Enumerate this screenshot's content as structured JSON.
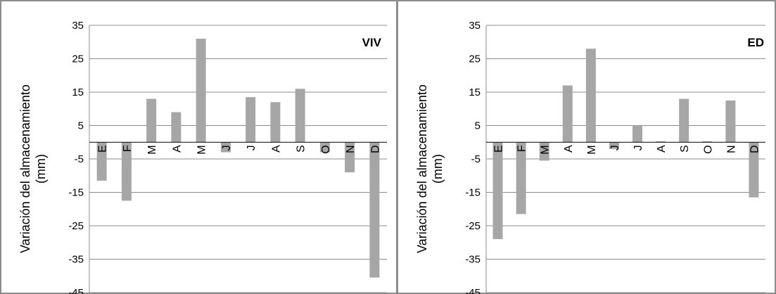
{
  "chart_data": [
    {
      "type": "bar",
      "title": "VIV",
      "ylabel": "Variación del almacenamiento (mm)",
      "ylabel_lines": [
        "Variación del almacenamiento",
        "(mm)"
      ],
      "categories": [
        "E",
        "F",
        "M",
        "A",
        "M",
        "J",
        "J",
        "A",
        "S",
        "O",
        "N",
        "D"
      ],
      "values": [
        -11.5,
        -17.5,
        13.0,
        9.0,
        31.0,
        -3.0,
        13.5,
        12.0,
        16.0,
        -3.0,
        -9.0,
        -40.5
      ],
      "ylim": [
        -45,
        35
      ],
      "yticks": [
        35,
        25,
        15,
        5,
        -5,
        -15,
        -25,
        -35,
        -45
      ],
      "grid": true,
      "bar_color": "#a6a6a6"
    },
    {
      "type": "bar",
      "title": "ED",
      "ylabel": "Variación del almacenamiento (mm)",
      "ylabel_lines": [
        "Variación del almacenamiento",
        "(mm)"
      ],
      "categories": [
        "E",
        "F",
        "M",
        "A",
        "M",
        "J",
        "J",
        "A",
        "S",
        "O",
        "N",
        "D"
      ],
      "values": [
        -29.0,
        -21.5,
        -5.5,
        17.0,
        28.0,
        -2.0,
        5.0,
        0.3,
        13.0,
        0.3,
        12.5,
        -16.5
      ],
      "ylim": [
        -45,
        35
      ],
      "yticks": [
        35,
        25,
        15,
        5,
        -5,
        -15,
        -25,
        -35,
        -45
      ],
      "grid": true,
      "bar_color": "#a6a6a6"
    }
  ]
}
